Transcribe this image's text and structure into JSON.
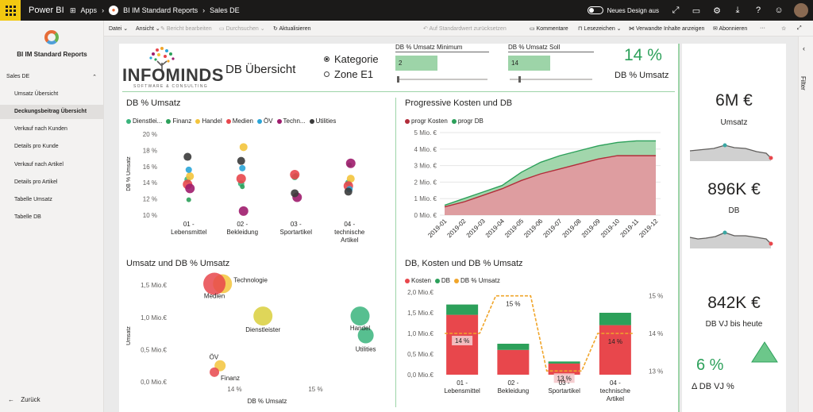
{
  "topbar": {
    "brand": "Power BI",
    "apps": "Apps",
    "workspace": "BI IM Standard Reports",
    "report": "Sales DE",
    "new_design": "Neues Design aus"
  },
  "commandbar": {
    "datei": "Datei",
    "ansicht": "Ansicht",
    "bericht_bearbeiten": "Bericht bearbeiten",
    "durchsuchen": "Durchsuchen",
    "aktualisieren": "Aktualisieren",
    "auf_standard": "Auf Standardwert zurücksetzen",
    "kommentare": "Kommentare",
    "lesezeichen": "Lesezeichen",
    "verwandte": "Verwandte Inhalte anzeigen",
    "abonnieren": "Abonnieren",
    "more": "···"
  },
  "leftnav": {
    "title": "BI IM Standard Reports",
    "section": "Sales DE",
    "items": [
      {
        "label": "Umsatz Übersicht"
      },
      {
        "label": "Deckungsbeitrag Übersicht"
      },
      {
        "label": "Verkauf nach Kunden"
      },
      {
        "label": "Details pro Kunde"
      },
      {
        "label": "Verkauf nach Artikel"
      },
      {
        "label": "Details pro Artikel"
      },
      {
        "label": "Tabelle Umsatz"
      },
      {
        "label": "Tabelle DB"
      }
    ],
    "back": "Zurück"
  },
  "filter_pane": {
    "label": "Filter"
  },
  "header": {
    "logo_text": "INFOMINDS",
    "logo_sub": "SOFTWARE & CONSULTING",
    "page_title": "DB Übersicht",
    "radio_kategorie": "Kategorie",
    "radio_zone": "Zone E1",
    "slicer_min_title": "DB % Umsatz Minimum",
    "slicer_min_value": "2",
    "slicer_soll_title": "DB % Umsatz Soll",
    "slicer_soll_value": "14",
    "kpi_value": "14 %",
    "kpi_label": "DB % Umsatz"
  },
  "cards": {
    "umsatz_value": "6M €",
    "umsatz_label": "Umsatz",
    "db_value": "896K €",
    "db_label": "DB",
    "dbvj_value": "842K €",
    "dbvj_label": "DB VJ bis heute",
    "delta_value": "6 %",
    "delta_label": "Δ DB VJ %",
    "colors": {
      "positive": "#2ca05a",
      "trend_fill": "#d0d0d0",
      "trend_line": "#605e5c",
      "last_dot": "#e8474c",
      "mid_dot": "#3aa7a3"
    }
  },
  "colors": {
    "green": "#2ca05a",
    "red": "#e8474c",
    "yellow": "#f3c43c",
    "purple": "#9e1c6d",
    "blue": "#2aa5d8",
    "teal": "#3ab47c",
    "dark": "#3b3b3b",
    "accent": "#9dd4a8",
    "orange": "#f0a52a"
  },
  "chart_data": [
    {
      "id": "db_pct_umsatz",
      "type": "scatter",
      "title": "DB % Umsatz",
      "ylabel": "DB % Umsatz",
      "categories": [
        "01 - Lebensmittel",
        "02 - Bekleidung",
        "03 - Sportartikel",
        "04 - technische Artikel"
      ],
      "yticks": [
        "20 %",
        "18 %",
        "16 %",
        "14 %",
        "12 %",
        "10 %"
      ],
      "ylim": [
        10,
        20
      ],
      "legend": [
        "Dienstlei...",
        "Finanz",
        "Handel",
        "Medien",
        "ÖV",
        "Techn...",
        "Utilities"
      ],
      "series": [
        {
          "name": "Dienstlei...",
          "values": [
            14.4,
            13.9,
            14.7,
            14.0
          ]
        },
        {
          "name": "Finanz",
          "values": [
            11.9,
            13.5,
            14.9,
            16.2
          ]
        },
        {
          "name": "Handel",
          "values": [
            14.8,
            18.4,
            null,
            14.5
          ]
        },
        {
          "name": "Medien",
          "values": [
            13.8,
            14.5,
            15.0,
            13.6
          ]
        },
        {
          "name": "ÖV",
          "values": [
            15.6,
            15.8,
            null,
            13.2
          ]
        },
        {
          "name": "Techn...",
          "values": [
            13.3,
            10.5,
            12.2,
            16.4
          ]
        },
        {
          "name": "Utilities",
          "values": [
            17.2,
            16.7,
            12.7,
            12.9
          ]
        }
      ]
    },
    {
      "id": "progressive",
      "type": "area",
      "title": "Progressive Kosten und DB",
      "x": [
        "2019-01",
        "2019-02",
        "2019-03",
        "2019-04",
        "2019-05",
        "2019-06",
        "2019-07",
        "2019-08",
        "2019-09",
        "2019-10",
        "2019-11",
        "2019-12"
      ],
      "yticks": [
        "5 Mio. €",
        "4 Mio. €",
        "3 Mio. €",
        "2 Mio. €",
        "1 Mio. €",
        "0 Mio. €"
      ],
      "ylim": [
        0,
        5
      ],
      "legend": [
        "progr Kosten",
        "progr DB"
      ],
      "series": [
        {
          "name": "progr Kosten",
          "values": [
            0.5,
            0.8,
            1.2,
            1.6,
            2.1,
            2.5,
            2.8,
            3.1,
            3.4,
            3.6,
            3.6,
            3.6
          ]
        },
        {
          "name": "progr DB",
          "values": [
            0.6,
            1.0,
            1.4,
            1.8,
            2.6,
            3.2,
            3.6,
            3.9,
            4.2,
            4.4,
            4.5,
            4.5
          ]
        }
      ]
    },
    {
      "id": "umsatz_db_pct",
      "type": "scatter",
      "title": "Umsatz und DB % Umsatz",
      "xlabel": "DB % Umsatz",
      "ylabel": "Umsatz",
      "xticks": [
        "14 %",
        "15 %"
      ],
      "xlim": [
        13.2,
        15.8
      ],
      "yticks": [
        "1,5 Mio.€",
        "1,0 Mio.€",
        "0,5 Mio.€",
        "0,0 Mio.€"
      ],
      "ylim": [
        0,
        1.6
      ],
      "points": [
        {
          "label": "Technologie",
          "x": 13.85,
          "y": 1.52,
          "r": 12,
          "color": "yellow"
        },
        {
          "label": "Medien",
          "x": 13.75,
          "y": 1.52,
          "r": 14,
          "color": "red"
        },
        {
          "label": "Dienstleister",
          "x": 14.35,
          "y": 1.02,
          "r": 12,
          "color": "yellow_olive"
        },
        {
          "label": "Handel",
          "x": 15.55,
          "y": 1.02,
          "r": 12,
          "color": "green"
        },
        {
          "label": "Utilities",
          "x": 15.62,
          "y": 0.72,
          "r": 10,
          "color": "green"
        },
        {
          "label": "ÖV",
          "x": 13.82,
          "y": 0.25,
          "r": 7,
          "color": "yellow"
        },
        {
          "label": "Finanz",
          "x": 13.75,
          "y": 0.15,
          "r": 6,
          "color": "red"
        }
      ]
    },
    {
      "id": "db_kosten",
      "type": "bar",
      "title": "DB, Kosten und DB % Umsatz",
      "categories": [
        "01 - Lebensmittel",
        "02 - Bekleidung",
        "03 - Sportartikel",
        "04 - technische Artikel"
      ],
      "yticks": [
        "2,0 Mio.€",
        "1,5 Mio.€",
        "1,0 Mio.€",
        "0,5 Mio.€",
        "0,0 Mio.€"
      ],
      "ylim": [
        0,
        2.0
      ],
      "y2ticks": [
        "15 %",
        "14 %",
        "13 %"
      ],
      "y2lim": [
        12.9,
        15.1
      ],
      "legend": [
        "Kosten",
        "DB",
        "DB % Umsatz"
      ],
      "series": [
        {
          "name": "Kosten",
          "values": [
            1.45,
            0.6,
            0.27,
            1.2
          ]
        },
        {
          "name": "DB",
          "values": [
            0.25,
            0.15,
            0.05,
            0.3
          ]
        },
        {
          "name": "DB % Umsatz",
          "values": [
            14.0,
            15.0,
            13.0,
            14.0
          ]
        }
      ],
      "data_labels": [
        "14 %",
        "15 %",
        "13 %",
        "14 %"
      ]
    }
  ]
}
